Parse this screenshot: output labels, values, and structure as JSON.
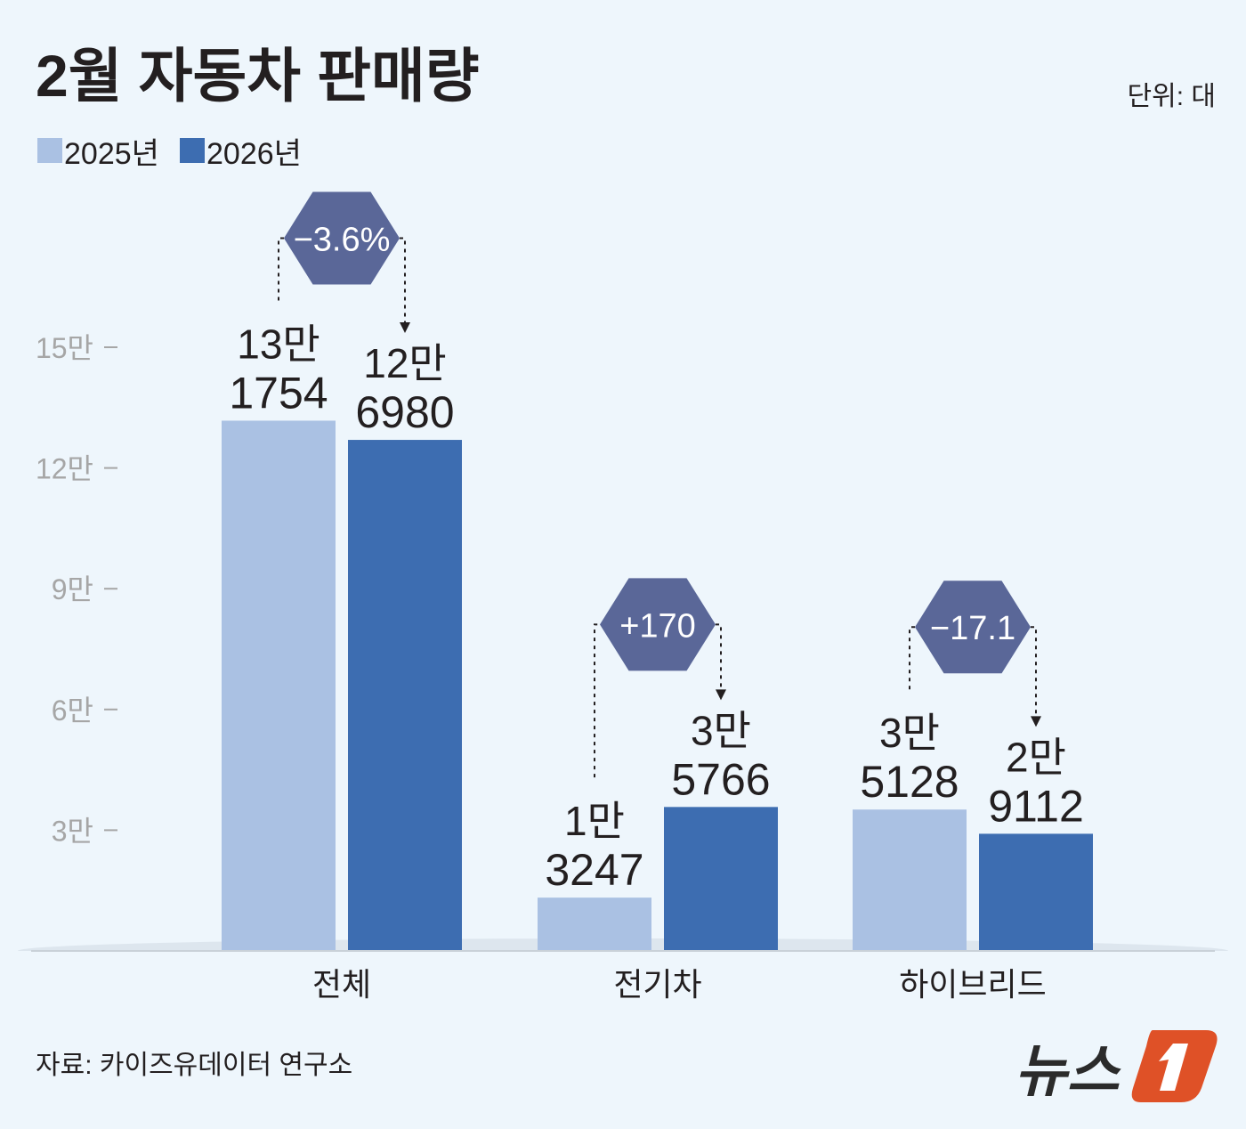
{
  "chart_data": {
    "type": "bar",
    "title": "2월 자동차 판매량",
    "unit_label": "단위: 대",
    "source": "자료: 카이즈유데이터 연구소",
    "logo_text": "뉴스1",
    "categories": [
      "전체",
      "전기차",
      "하이브리드"
    ],
    "series": [
      {
        "name": "2025년",
        "color": "#aac1e3",
        "values": [
          131754,
          13247,
          35128
        ],
        "labels": [
          [
            "13만",
            "1754"
          ],
          [
            "1만",
            "3247"
          ],
          [
            "3만",
            "5128"
          ]
        ]
      },
      {
        "name": "2026년",
        "color": "#3d6db1",
        "values": [
          126980,
          35766,
          29112
        ],
        "labels": [
          [
            "12만",
            "6980"
          ],
          [
            "3만",
            "5766"
          ],
          [
            "2만",
            "9112"
          ]
        ]
      }
    ],
    "changes": [
      "−3.6%",
      "+170",
      "−17.1"
    ],
    "change_color": "#5a6798",
    "ylim": [
      0,
      150000
    ],
    "yticks": [
      {
        "value": 30000,
        "label": "3만"
      },
      {
        "value": 60000,
        "label": "6만"
      },
      {
        "value": 90000,
        "label": "9만"
      },
      {
        "value": 120000,
        "label": "12만"
      },
      {
        "value": 150000,
        "label": "15만"
      }
    ],
    "grid": false,
    "legend": "top-left"
  }
}
